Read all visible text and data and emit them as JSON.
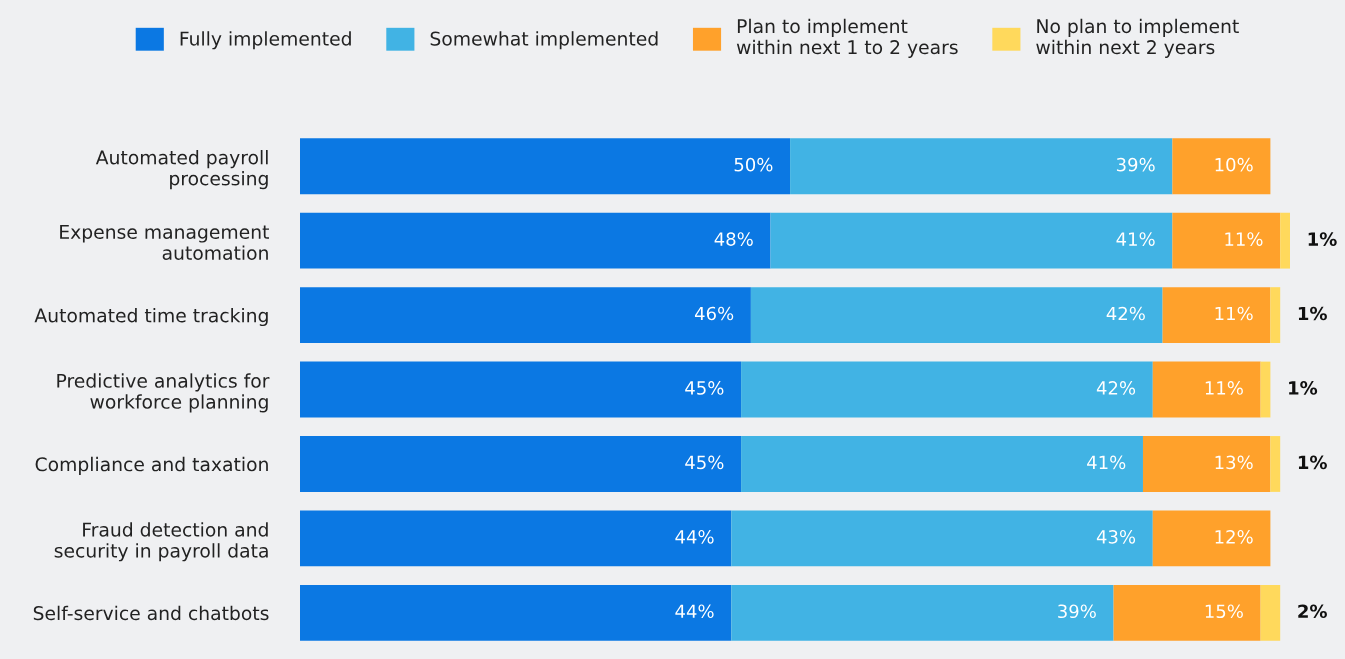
{
  "chart_data": {
    "type": "bar",
    "orientation": "horizontal",
    "stacked": true,
    "legend": "top",
    "grid": false,
    "categories": [
      "Automated payroll\nprocessing",
      "Expense management\nautomation",
      "Automated time tracking",
      "Predictive analytics for\nworkforce planning",
      "Compliance and taxation",
      "Fraud detection and\nsecurity in payroll data",
      "Self-service and chatbots"
    ],
    "series": [
      {
        "name": "Fully implemented",
        "color": "#0b78e3",
        "values": [
          50,
          48,
          46,
          45,
          45,
          44,
          44
        ],
        "value_labels": [
          "50%",
          "48%",
          "46%",
          "45%",
          "45%",
          "44%",
          "44%"
        ]
      },
      {
        "name": "Somewhat implemented",
        "color": "#41b3e4",
        "values": [
          39,
          41,
          42,
          42,
          41,
          43,
          39
        ],
        "value_labels": [
          "39%",
          "41%",
          "42%",
          "42%",
          "41%",
          "43%",
          "39%"
        ]
      },
      {
        "name": "Plan to implement\nwithin next 1 to 2 years",
        "color": "#ffa12b",
        "values": [
          10,
          11,
          11,
          11,
          13,
          12,
          15
        ],
        "value_labels": [
          "10%",
          "11%",
          "11%",
          "11%",
          "13%",
          "12%",
          "15%"
        ]
      },
      {
        "name": "No plan to implement\nwithin next 2 years",
        "color": "#ffd95c",
        "values": [
          null,
          1,
          1,
          1,
          1,
          null,
          2
        ],
        "value_labels": [
          null,
          "1%",
          "1%",
          "1%",
          "1%",
          null,
          "2%"
        ]
      }
    ]
  }
}
